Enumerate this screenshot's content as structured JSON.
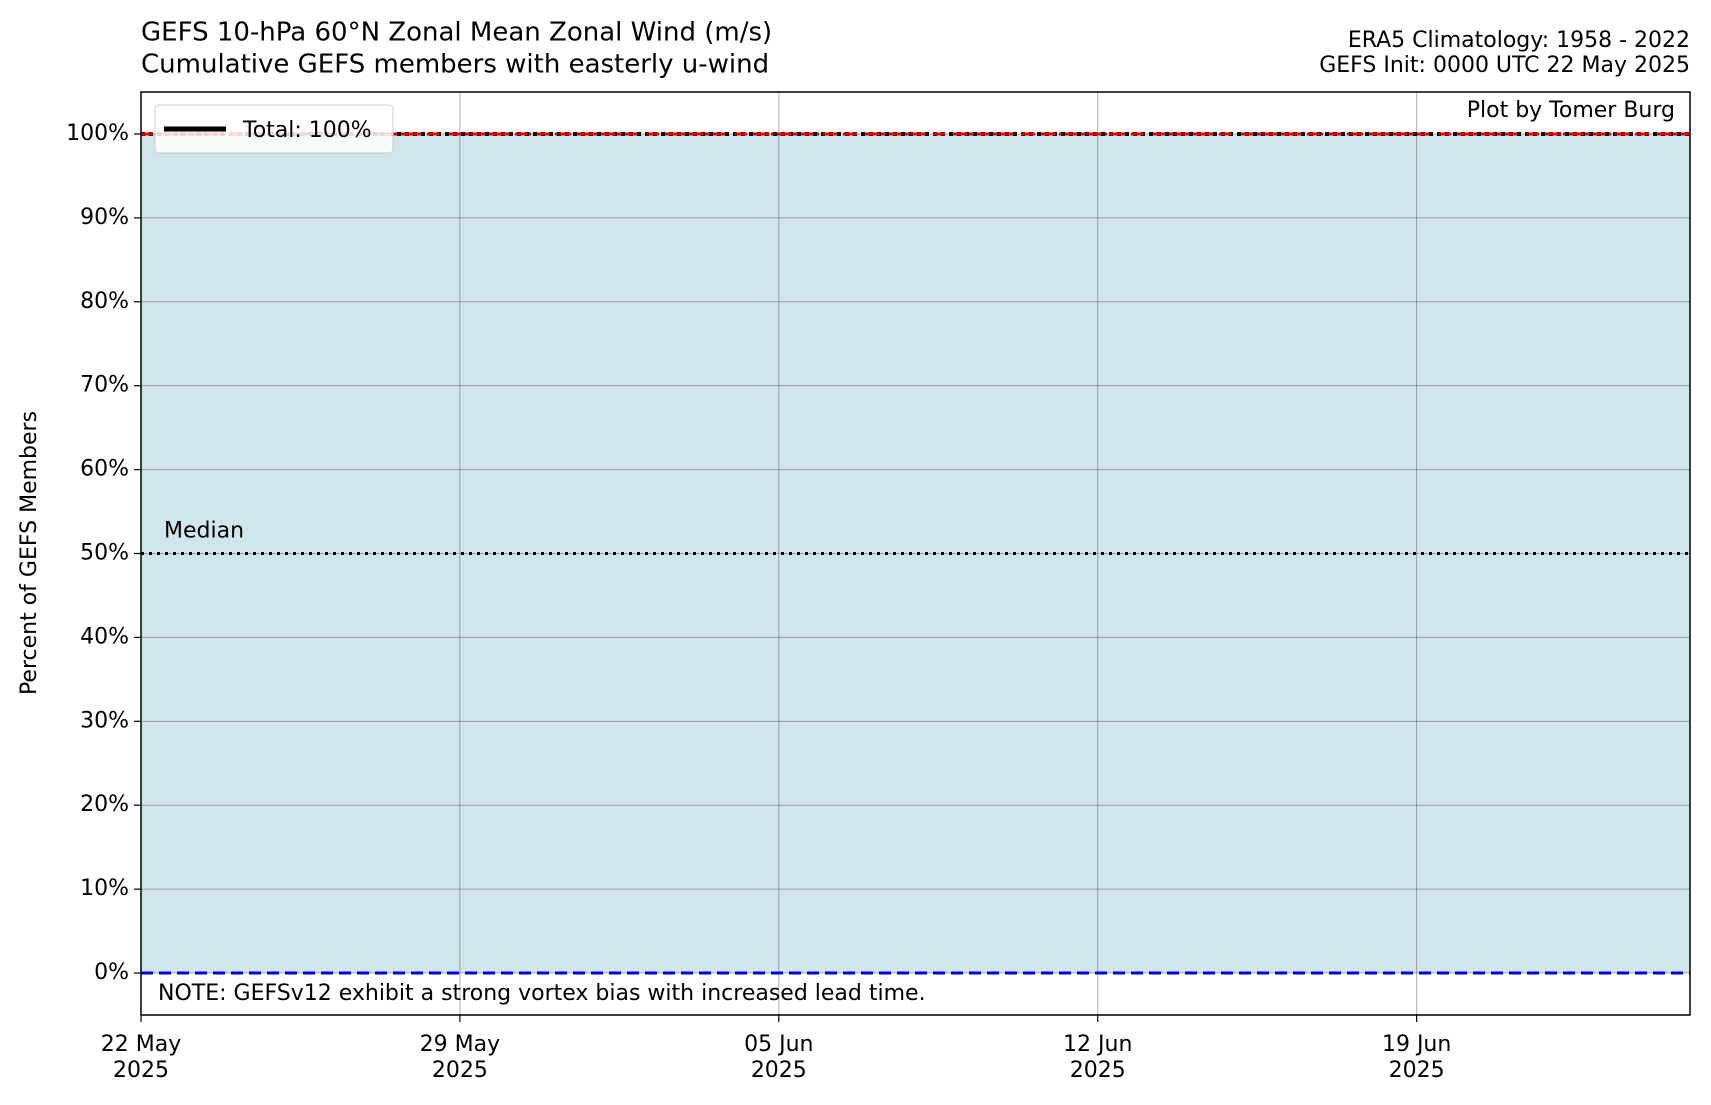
{
  "chart_data": {
    "type": "line",
    "title": "GEFS 10-hPa 60°N Zonal Mean Zonal Wind (m/s)",
    "subtitle": "Cumulative GEFS members with easterly u-wind",
    "right_title": [
      "ERA5 Climatology: 1958 - 2022",
      "GEFS Init: 0000 UTC 22 May 2025"
    ],
    "credit": "Plot by Tomer Burg",
    "note": "NOTE: GEFSv12 exhibit a strong vortex bias with increased lead time.",
    "ylabel": "Percent of GEFS Members",
    "x": [
      "2025-05-22",
      "2025-06-25"
    ],
    "xlim": [
      "2025-05-22",
      "2025-06-25"
    ],
    "xticks": [
      {
        "value": "2025-05-22",
        "label": [
          "22 May",
          "2025"
        ]
      },
      {
        "value": "2025-05-29",
        "label": [
          "29 May",
          "2025"
        ]
      },
      {
        "value": "2025-06-05",
        "label": [
          "05 Jun",
          "2025"
        ]
      },
      {
        "value": "2025-06-12",
        "label": [
          "12 Jun",
          "2025"
        ]
      },
      {
        "value": "2025-06-19",
        "label": [
          "19 Jun",
          "2025"
        ]
      }
    ],
    "series": [
      {
        "name": "Total: 100%",
        "color": "#000000",
        "values": [
          100,
          100
        ]
      }
    ],
    "fill_color": "#d1e5ec",
    "reference_lines": [
      {
        "value": 100,
        "color": "#dd0000",
        "style": "dashed"
      },
      {
        "value": 0,
        "color": "#0000dd",
        "style": "dashed"
      },
      {
        "value": 50,
        "color": "#000000",
        "style": "dotted",
        "label": "Median"
      }
    ],
    "ylim": [
      -5,
      105
    ],
    "yticks": [
      {
        "value": 0,
        "label": "0%"
      },
      {
        "value": 10,
        "label": "10%"
      },
      {
        "value": 20,
        "label": "20%"
      },
      {
        "value": 30,
        "label": "30%"
      },
      {
        "value": 40,
        "label": "40%"
      },
      {
        "value": 50,
        "label": "50%"
      },
      {
        "value": 60,
        "label": "60%"
      },
      {
        "value": 70,
        "label": "70%"
      },
      {
        "value": 80,
        "label": "80%"
      },
      {
        "value": 90,
        "label": "90%"
      },
      {
        "value": 100,
        "label": "100%"
      }
    ],
    "grid": true,
    "legend": "upper left"
  }
}
